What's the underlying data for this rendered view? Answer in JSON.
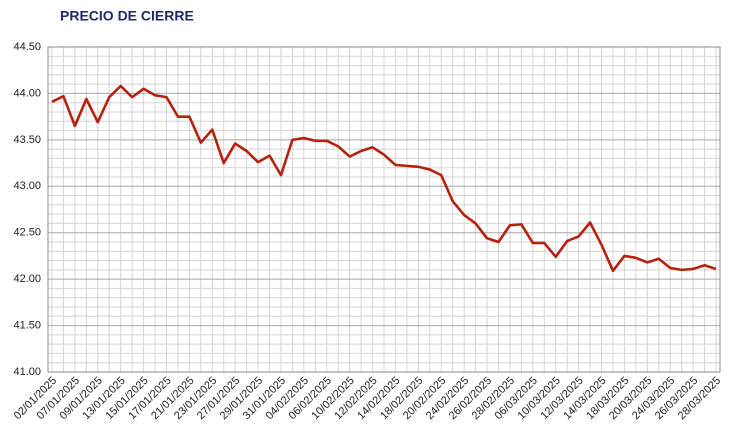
{
  "chart_data": {
    "type": "line",
    "title": "PRECIO DE CIERRE",
    "categories": [
      "02/01/2025",
      null,
      "07/01/2025",
      null,
      "09/01/2025",
      null,
      "13/01/2025",
      null,
      "15/01/2025",
      null,
      "17/01/2025",
      null,
      "21/01/2025",
      null,
      "23/01/2025",
      null,
      "27/01/2025",
      null,
      "29/01/2025",
      null,
      "31/01/2025",
      null,
      "04/02/2025",
      null,
      "06/02/2025",
      null,
      "10/02/2025",
      null,
      "12/02/2025",
      null,
      "14/02/2025",
      null,
      "18/02/2025",
      null,
      "20/02/2025",
      null,
      "24/02/2025",
      null,
      "26/02/2025",
      null,
      "28/02/2025",
      null,
      "06/03/2025",
      null,
      "10/03/2025",
      null,
      "12/03/2025",
      null,
      "14/03/2025",
      null,
      "18/03/2025",
      null,
      "20/03/2025",
      null,
      "24/03/2025",
      null,
      "26/03/2025",
      null,
      "28/03/2025"
    ],
    "values": [
      43.91,
      43.97,
      43.65,
      43.94,
      43.69,
      43.96,
      44.08,
      43.96,
      44.05,
      43.98,
      43.96,
      43.75,
      43.75,
      43.47,
      43.61,
      43.25,
      43.46,
      43.38,
      43.26,
      43.33,
      43.12,
      43.5,
      43.52,
      43.49,
      43.49,
      43.43,
      43.32,
      43.38,
      43.42,
      43.34,
      43.23,
      43.22,
      43.21,
      43.18,
      43.12,
      42.84,
      42.69,
      42.6,
      42.44,
      42.4,
      42.58,
      42.59,
      42.39,
      42.39,
      42.24,
      42.41,
      42.46,
      42.61,
      42.37,
      42.09,
      42.25,
      42.23,
      42.18,
      42.22,
      42.12,
      42.1,
      42.11,
      42.15,
      42.11
    ],
    "color": "#b5200f",
    "ylim": [
      41,
      44.5
    ],
    "yticks": [
      {
        "value": 41,
        "label": "41.00"
      },
      {
        "value": 41.5,
        "label": "41.50"
      },
      {
        "value": 42,
        "label": "42.00"
      },
      {
        "value": 42.5,
        "label": "42.50"
      },
      {
        "value": 43,
        "label": "43.00"
      },
      {
        "value": 43.5,
        "label": "43.50"
      },
      {
        "value": 44,
        "label": "44.00"
      },
      {
        "value": 44.5,
        "label": "44.50"
      }
    ],
    "grid": true
  }
}
